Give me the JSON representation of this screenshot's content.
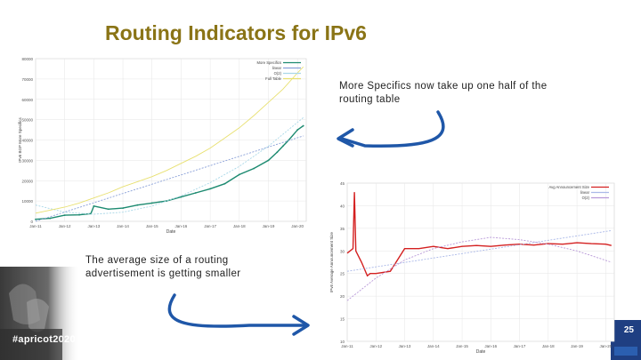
{
  "slide": {
    "title": "Routing Indicators for IPv6",
    "callout_top": "More Specifics now take up one half of the routing table",
    "callout_bottom": "The average size of a routing advertisement is getting smaller",
    "hashtag": "#apricot2020",
    "page_number": "25"
  },
  "colors": {
    "title": "#8a7416",
    "arrow": "#1f57a8",
    "more_specifics": "#1c8a70",
    "linear": "#8aa0d8",
    "o2": "#aad8e8",
    "full_table": "#e8e070",
    "avg_announcement": "#d42020",
    "linear2": "#aab8e8",
    "o2_2": "#b898d8"
  },
  "chart_data": [
    {
      "type": "line",
      "title": "",
      "xlabel": "Date",
      "ylabel": "IPv6 BGP More Specifics",
      "xlim": [
        2011,
        2020.3
      ],
      "ylim": [
        0,
        80000
      ],
      "x_ticks": [
        "Jan-11",
        "Jan-12",
        "Jan-13",
        "Jan-14",
        "Jan-15",
        "Jan-16",
        "Jan-17",
        "Jan-18",
        "Jan-19",
        "Jan-20"
      ],
      "y_ticks": [
        0,
        10000,
        20000,
        30000,
        40000,
        50000,
        60000,
        70000,
        80000
      ],
      "legend_position": "top-right",
      "series": [
        {
          "name": "More Specifics",
          "x": [
            2011.0,
            2011.5,
            2012.0,
            2012.5,
            2012.9,
            2013.0,
            2013.5,
            2014.0,
            2014.5,
            2015.0,
            2015.5,
            2016.0,
            2016.5,
            2017.0,
            2017.5,
            2018.0,
            2018.5,
            2019.0,
            2019.3,
            2019.5,
            2019.7,
            2020.0,
            2020.2
          ],
          "y": [
            1000,
            1500,
            3000,
            3200,
            3800,
            7500,
            6000,
            6500,
            8000,
            9000,
            10000,
            12000,
            14000,
            16000,
            18500,
            23000,
            26000,
            30000,
            34000,
            37000,
            40000,
            45000,
            47000
          ]
        },
        {
          "name": "linear",
          "x": [
            2011.0,
            2020.2
          ],
          "y": [
            -5000,
            42000
          ]
        },
        {
          "name": "O(2)",
          "x": [
            2011.0,
            2012.0,
            2013.0,
            2014.0,
            2015.0,
            2016.0,
            2017.0,
            2018.0,
            2019.0,
            2020.2
          ],
          "y": [
            8000,
            4500,
            3500,
            4500,
            7500,
            12500,
            19000,
            27000,
            37000,
            51000
          ]
        },
        {
          "name": "Full Table",
          "x": [
            2011.0,
            2011.5,
            2012.0,
            2012.5,
            2013.0,
            2013.5,
            2014.0,
            2014.5,
            2015.0,
            2015.5,
            2016.0,
            2016.5,
            2017.0,
            2017.5,
            2018.0,
            2018.5,
            2019.0,
            2019.5,
            2020.0,
            2020.2
          ],
          "y": [
            4000,
            5500,
            7000,
            9000,
            11500,
            14000,
            17000,
            19500,
            22000,
            25000,
            28500,
            32000,
            36000,
            41000,
            46000,
            52000,
            58500,
            65000,
            73000,
            76000
          ]
        }
      ]
    },
    {
      "type": "line",
      "title": "",
      "xlabel": "Date",
      "ylabel": "IPv6 Average Announcement Size",
      "xlim": [
        2011,
        2020.3
      ],
      "ylim": [
        10,
        45
      ],
      "x_ticks": [
        "Jan-11",
        "Jan-12",
        "Jan-13",
        "Jan-14",
        "Jan-15",
        "Jan-16",
        "Jan-17",
        "Jan-18",
        "Jan-19",
        "Jan-20"
      ],
      "y_ticks": [
        10,
        15,
        20,
        25,
        30,
        35,
        40,
        45
      ],
      "legend_position": "top-right",
      "series": [
        {
          "name": "Avg Announcement Size",
          "x": [
            2011.0,
            2011.2,
            2011.25,
            2011.3,
            2011.5,
            2011.7,
            2011.8,
            2012.0,
            2012.5,
            2013.0,
            2013.5,
            2014.0,
            2014.5,
            2015.0,
            2015.5,
            2016.0,
            2016.5,
            2017.0,
            2017.5,
            2018.0,
            2018.5,
            2019.0,
            2019.5,
            2020.0,
            2020.2
          ],
          "y": [
            29.5,
            30.5,
            43,
            30,
            27.5,
            24.5,
            25,
            25,
            25.5,
            30.5,
            30.5,
            31,
            30.5,
            31,
            31.2,
            31,
            31.3,
            31.5,
            31.3,
            31.6,
            31.5,
            31.8,
            31.6,
            31.5,
            31.2
          ]
        },
        {
          "name": "linear",
          "x": [
            2011.0,
            2020.2
          ],
          "y": [
            25.5,
            34.5
          ]
        },
        {
          "name": "O(2)",
          "x": [
            2011.0,
            2012.0,
            2013.0,
            2014.0,
            2015.0,
            2016.0,
            2017.0,
            2018.0,
            2019.0,
            2020.2
          ],
          "y": [
            19,
            24,
            28,
            30.5,
            32,
            33,
            32.5,
            31.5,
            30,
            27.5
          ]
        }
      ]
    }
  ]
}
